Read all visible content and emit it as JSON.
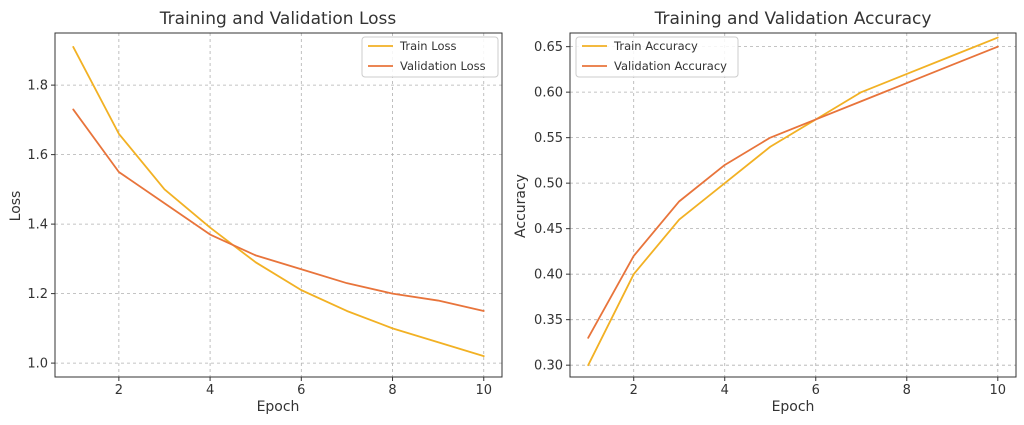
{
  "chart_data": [
    {
      "type": "line",
      "title": "Training and Validation Loss",
      "xlabel": "Epoch",
      "ylabel": "Loss",
      "xlim": [
        0.6,
        10.4
      ],
      "ylim": [
        0.96,
        1.95
      ],
      "xticks": [
        2,
        4,
        6,
        8,
        10
      ],
      "yticks": [
        1.0,
        1.2,
        1.4,
        1.6,
        1.8
      ],
      "ytick_labels": [
        "1.0",
        "1.2",
        "1.4",
        "1.6",
        "1.8"
      ],
      "grid": true,
      "legend_position": "top-right",
      "x": [
        1,
        2,
        3,
        4,
        5,
        6,
        7,
        8,
        9,
        10
      ],
      "series": [
        {
          "name": "Train Loss",
          "color": "#f2b124",
          "values": [
            1.91,
            1.66,
            1.5,
            1.39,
            1.29,
            1.21,
            1.15,
            1.1,
            1.06,
            1.02
          ]
        },
        {
          "name": "Validation Loss",
          "color": "#e8743b",
          "values": [
            1.73,
            1.55,
            1.46,
            1.37,
            1.31,
            1.27,
            1.23,
            1.2,
            1.18,
            1.15
          ]
        }
      ]
    },
    {
      "type": "line",
      "title": "Training and Validation Accuracy",
      "xlabel": "Epoch",
      "ylabel": "Accuracy",
      "xlim": [
        0.6,
        10.4
      ],
      "ylim": [
        0.287,
        0.665
      ],
      "xticks": [
        2,
        4,
        6,
        8,
        10
      ],
      "yticks": [
        0.3,
        0.35,
        0.4,
        0.45,
        0.5,
        0.55,
        0.6,
        0.65
      ],
      "ytick_labels": [
        "0.30",
        "0.35",
        "0.40",
        "0.45",
        "0.50",
        "0.55",
        "0.60",
        "0.65"
      ],
      "grid": true,
      "legend_position": "top-left",
      "x": [
        1,
        2,
        3,
        4,
        5,
        6,
        7,
        8,
        9,
        10
      ],
      "series": [
        {
          "name": "Train Accuracy",
          "color": "#f2b124",
          "values": [
            0.3,
            0.4,
            0.46,
            0.5,
            0.54,
            0.57,
            0.6,
            0.62,
            0.64,
            0.66
          ]
        },
        {
          "name": "Validation Accuracy",
          "color": "#e8743b",
          "values": [
            0.33,
            0.42,
            0.48,
            0.52,
            0.55,
            0.57,
            0.59,
            0.61,
            0.63,
            0.65
          ]
        }
      ]
    }
  ]
}
